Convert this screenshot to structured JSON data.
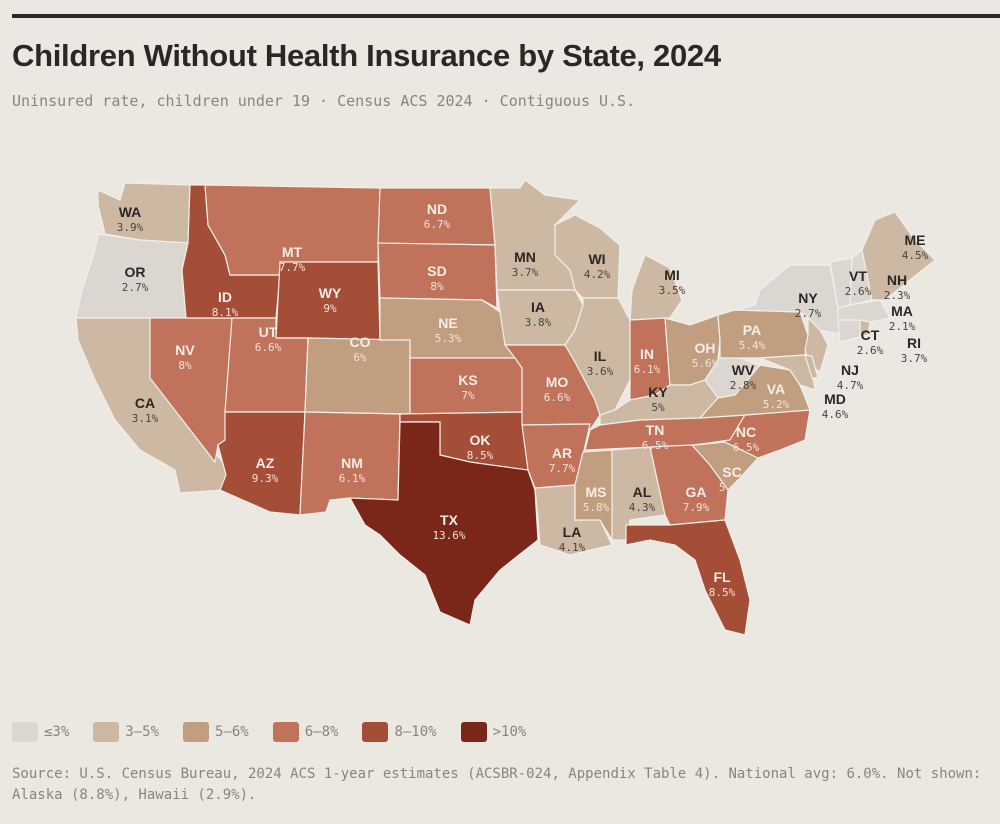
{
  "title": "Children Without Health Insurance by State, 2024",
  "subtitle": "Uninsured rate, children under 19 · Census ACS 2024 · Contiguous U.S.",
  "legend": [
    {
      "label": "≤3%",
      "color": "#dcd6d0"
    },
    {
      "label": "3–5%",
      "color": "#cdb9a3"
    },
    {
      "label": "5–6%",
      "color": "#c29e80"
    },
    {
      "label": "6–8%",
      "color": "#c0735a"
    },
    {
      "label": "8–10%",
      "color": "#a54e37"
    },
    {
      "label": ">10%",
      "color": "#7a2618"
    }
  ],
  "source": "Source: U.S. Census Bureau, 2024 ACS 1-year estimates (ACSBR-024, Appendix Table 4). National avg: 6.0%. Not shown: Alaska (8.8%), Hawaii (2.9%).",
  "states": [
    {
      "code": "WA",
      "value": "3.9%"
    },
    {
      "code": "OR",
      "value": "2.7%"
    },
    {
      "code": "CA",
      "value": "3.1%"
    },
    {
      "code": "NV",
      "value": "8%"
    },
    {
      "code": "ID",
      "value": "8.1%"
    },
    {
      "code": "MT",
      "value": "7.7%"
    },
    {
      "code": "WY",
      "value": "9%"
    },
    {
      "code": "UT",
      "value": "6.6%"
    },
    {
      "code": "CO",
      "value": "6%"
    },
    {
      "code": "AZ",
      "value": "9.3%"
    },
    {
      "code": "NM",
      "value": "6.1%"
    },
    {
      "code": "ND",
      "value": "6.7%"
    },
    {
      "code": "SD",
      "value": "8%"
    },
    {
      "code": "NE",
      "value": "5.3%"
    },
    {
      "code": "KS",
      "value": "7%"
    },
    {
      "code": "OK",
      "value": "8.5%"
    },
    {
      "code": "TX",
      "value": "13.6%"
    },
    {
      "code": "MN",
      "value": "3.7%"
    },
    {
      "code": "IA",
      "value": "3.8%"
    },
    {
      "code": "MO",
      "value": "6.6%"
    },
    {
      "code": "AR",
      "value": "7.7%"
    },
    {
      "code": "LA",
      "value": "4.1%"
    },
    {
      "code": "WI",
      "value": "4.2%"
    },
    {
      "code": "MI",
      "value": "3.5%"
    },
    {
      "code": "IL",
      "value": "3.6%"
    },
    {
      "code": "IN",
      "value": "6.1%"
    },
    {
      "code": "OH",
      "value": "5.6%"
    },
    {
      "code": "KY",
      "value": "5%"
    },
    {
      "code": "TN",
      "value": "6.5%"
    },
    {
      "code": "MS",
      "value": "5.8%"
    },
    {
      "code": "AL",
      "value": "4.3%"
    },
    {
      "code": "GA",
      "value": "7.9%"
    },
    {
      "code": "FL",
      "value": "8.5%"
    },
    {
      "code": "SC",
      "value": "5.9%"
    },
    {
      "code": "NC",
      "value": "6.5%"
    },
    {
      "code": "VA",
      "value": "5.2%"
    },
    {
      "code": "WV",
      "value": "2.8%"
    },
    {
      "code": "PA",
      "value": "5.4%"
    },
    {
      "code": "NY",
      "value": "2.7%"
    },
    {
      "code": "VT",
      "value": "2.6%"
    },
    {
      "code": "NH",
      "value": "2.3%"
    },
    {
      "code": "ME",
      "value": "4.5%"
    },
    {
      "code": "MA",
      "value": "2.1%"
    },
    {
      "code": "CT",
      "value": "2.6%"
    },
    {
      "code": "RI",
      "value": "3.7%"
    },
    {
      "code": "NJ",
      "value": "4.7%"
    },
    {
      "code": "MD",
      "value": "4.6%"
    }
  ]
}
